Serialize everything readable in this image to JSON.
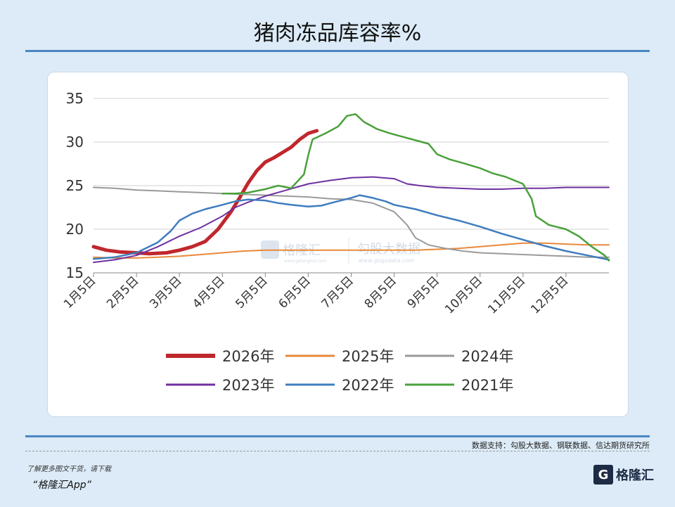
{
  "title": "猪肉冻品库容率%",
  "source": "数据支持：勾股大数据、钢联数据、信达期货研究所",
  "promo": {
    "line1": "了解更多图文干货，请下载",
    "line2": "“格隆汇App”"
  },
  "logo": {
    "mark": "G",
    "text": "格隆汇"
  },
  "watermark": {
    "left": "格隆汇",
    "left_sub": "www.gelonghui.com",
    "right": "勾股大数据",
    "right_sub": "www.gogudata.com"
  },
  "chart_data": {
    "type": "line",
    "categories": [
      "1月5日",
      "2月5日",
      "3月5日",
      "4月5日",
      "5月5日",
      "6月5日",
      "7月5日",
      "8月5日",
      "9月5日",
      "10月5日",
      "11月5日",
      "12月5日"
    ],
    "ylim": [
      15,
      35
    ],
    "yticks": [
      15,
      20,
      25,
      30,
      35
    ],
    "grid": true,
    "legend_position": "bottom",
    "series": [
      {
        "name": "2026年",
        "color": "#c0272d",
        "width": 5,
        "points": [
          [
            0,
            18.0
          ],
          [
            0.3,
            17.6
          ],
          [
            0.6,
            17.4
          ],
          [
            1.0,
            17.3
          ],
          [
            1.3,
            17.2
          ],
          [
            1.7,
            17.3
          ],
          [
            2.0,
            17.6
          ],
          [
            2.3,
            18.0
          ],
          [
            2.6,
            18.6
          ],
          [
            2.9,
            20.0
          ],
          [
            3.2,
            22.0
          ],
          [
            3.4,
            23.6
          ],
          [
            3.6,
            25.3
          ],
          [
            3.8,
            26.7
          ],
          [
            4.0,
            27.7
          ],
          [
            4.2,
            28.2
          ],
          [
            4.4,
            28.8
          ],
          [
            4.6,
            29.4
          ],
          [
            4.8,
            30.3
          ],
          [
            5.0,
            31.0
          ],
          [
            5.2,
            31.3
          ]
        ]
      },
      {
        "name": "2025年",
        "color": "#e8893a",
        "width": 2,
        "points": [
          [
            0,
            16.8
          ],
          [
            0.5,
            16.7
          ],
          [
            1.0,
            16.7
          ],
          [
            1.5,
            16.8
          ],
          [
            2.0,
            16.9
          ],
          [
            2.5,
            17.1
          ],
          [
            3.0,
            17.3
          ],
          [
            3.5,
            17.5
          ],
          [
            4.0,
            17.6
          ],
          [
            4.5,
            17.6
          ],
          [
            5.0,
            17.6
          ],
          [
            5.5,
            17.6
          ],
          [
            6.0,
            17.6
          ],
          [
            6.5,
            17.6
          ],
          [
            7.0,
            17.6
          ],
          [
            7.5,
            17.6
          ],
          [
            8.0,
            17.7
          ],
          [
            8.5,
            17.8
          ],
          [
            9.0,
            18.0
          ],
          [
            9.5,
            18.2
          ],
          [
            10.0,
            18.4
          ],
          [
            10.5,
            18.4
          ],
          [
            11.0,
            18.3
          ],
          [
            11.5,
            18.2
          ],
          [
            12.0,
            18.2
          ]
        ]
      },
      {
        "name": "2024年",
        "color": "#9a9a9a",
        "width": 2,
        "points": [
          [
            0,
            24.8
          ],
          [
            0.5,
            24.7
          ],
          [
            1.0,
            24.5
          ],
          [
            1.5,
            24.4
          ],
          [
            2.0,
            24.3
          ],
          [
            2.5,
            24.2
          ],
          [
            3.0,
            24.1
          ],
          [
            3.5,
            24.0
          ],
          [
            4.0,
            23.9
          ],
          [
            4.5,
            23.8
          ],
          [
            5.0,
            23.7
          ],
          [
            5.5,
            23.5
          ],
          [
            6.0,
            23.4
          ],
          [
            6.5,
            23.0
          ],
          [
            7.0,
            22.0
          ],
          [
            7.3,
            20.5
          ],
          [
            7.5,
            19.0
          ],
          [
            7.8,
            18.2
          ],
          [
            8.2,
            17.8
          ],
          [
            8.6,
            17.5
          ],
          [
            9.0,
            17.3
          ],
          [
            9.5,
            17.2
          ],
          [
            10.0,
            17.1
          ],
          [
            10.5,
            17.0
          ],
          [
            11.0,
            16.9
          ],
          [
            11.5,
            16.8
          ],
          [
            12.0,
            16.8
          ]
        ]
      },
      {
        "name": "2023年",
        "color": "#7030a0",
        "width": 2,
        "points": [
          [
            0,
            16.2
          ],
          [
            0.5,
            16.5
          ],
          [
            1.0,
            17.0
          ],
          [
            1.5,
            18.0
          ],
          [
            2.0,
            19.2
          ],
          [
            2.5,
            20.2
          ],
          [
            3.0,
            21.5
          ],
          [
            3.3,
            22.5
          ],
          [
            3.6,
            23.1
          ],
          [
            4.0,
            23.8
          ],
          [
            4.5,
            24.5
          ],
          [
            5.0,
            25.2
          ],
          [
            5.5,
            25.6
          ],
          [
            6.0,
            25.9
          ],
          [
            6.5,
            26.0
          ],
          [
            7.0,
            25.8
          ],
          [
            7.3,
            25.2
          ],
          [
            7.6,
            25.0
          ],
          [
            8.0,
            24.8
          ],
          [
            8.5,
            24.7
          ],
          [
            9.0,
            24.6
          ],
          [
            9.5,
            24.6
          ],
          [
            10.0,
            24.7
          ],
          [
            10.5,
            24.7
          ],
          [
            11.0,
            24.8
          ],
          [
            11.5,
            24.8
          ],
          [
            12.0,
            24.8
          ]
        ]
      },
      {
        "name": "2022年",
        "color": "#3f7dbf",
        "width": 2.5,
        "points": [
          [
            0,
            16.6
          ],
          [
            0.5,
            16.8
          ],
          [
            1.0,
            17.3
          ],
          [
            1.5,
            18.5
          ],
          [
            1.8,
            19.8
          ],
          [
            2.0,
            21.0
          ],
          [
            2.3,
            21.8
          ],
          [
            2.6,
            22.3
          ],
          [
            3.0,
            22.8
          ],
          [
            3.3,
            23.2
          ],
          [
            3.6,
            23.4
          ],
          [
            4.0,
            23.3
          ],
          [
            4.3,
            23.0
          ],
          [
            4.6,
            22.8
          ],
          [
            5.0,
            22.6
          ],
          [
            5.3,
            22.7
          ],
          [
            5.6,
            23.1
          ],
          [
            6.0,
            23.6
          ],
          [
            6.2,
            23.9
          ],
          [
            6.5,
            23.6
          ],
          [
            6.8,
            23.2
          ],
          [
            7.0,
            22.8
          ],
          [
            7.5,
            22.3
          ],
          [
            8.0,
            21.6
          ],
          [
            8.5,
            21.0
          ],
          [
            9.0,
            20.3
          ],
          [
            9.5,
            19.5
          ],
          [
            10.0,
            18.8
          ],
          [
            10.5,
            18.1
          ],
          [
            11.0,
            17.5
          ],
          [
            11.5,
            17.0
          ],
          [
            12.0,
            16.5
          ]
        ]
      },
      {
        "name": "2021年",
        "color": "#4aa13b",
        "width": 2.5,
        "points": [
          [
            3.0,
            24.1
          ],
          [
            3.3,
            24.1
          ],
          [
            3.6,
            24.2
          ],
          [
            4.0,
            24.6
          ],
          [
            4.3,
            25.0
          ],
          [
            4.6,
            24.7
          ],
          [
            4.9,
            26.3
          ],
          [
            5.0,
            28.5
          ],
          [
            5.1,
            30.3
          ],
          [
            5.4,
            31.0
          ],
          [
            5.7,
            31.8
          ],
          [
            5.9,
            33.0
          ],
          [
            6.1,
            33.2
          ],
          [
            6.3,
            32.3
          ],
          [
            6.6,
            31.5
          ],
          [
            6.9,
            31.0
          ],
          [
            7.2,
            30.6
          ],
          [
            7.5,
            30.2
          ],
          [
            7.8,
            29.8
          ],
          [
            8.0,
            28.6
          ],
          [
            8.3,
            28.0
          ],
          [
            8.6,
            27.6
          ],
          [
            9.0,
            27.0
          ],
          [
            9.3,
            26.4
          ],
          [
            9.6,
            26.0
          ],
          [
            10.0,
            25.2
          ],
          [
            10.2,
            23.5
          ],
          [
            10.3,
            21.5
          ],
          [
            10.6,
            20.5
          ],
          [
            11.0,
            20.0
          ],
          [
            11.3,
            19.2
          ],
          [
            11.6,
            18.0
          ],
          [
            11.9,
            17.0
          ],
          [
            12.0,
            16.4
          ]
        ]
      }
    ]
  }
}
